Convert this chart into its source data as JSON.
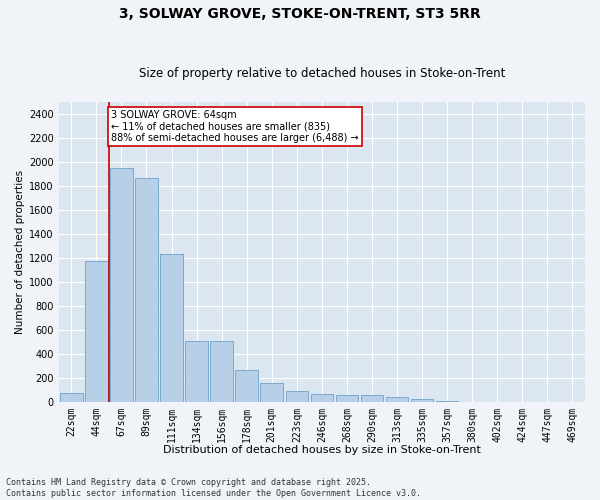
{
  "title1": "3, SOLWAY GROVE, STOKE-ON-TRENT, ST3 5RR",
  "title2": "Size of property relative to detached houses in Stoke-on-Trent",
  "xlabel": "Distribution of detached houses by size in Stoke-on-Trent",
  "ylabel": "Number of detached properties",
  "categories": [
    "22sqm",
    "44sqm",
    "67sqm",
    "89sqm",
    "111sqm",
    "134sqm",
    "156sqm",
    "178sqm",
    "201sqm",
    "223sqm",
    "246sqm",
    "268sqm",
    "290sqm",
    "313sqm",
    "335sqm",
    "357sqm",
    "380sqm",
    "402sqm",
    "424sqm",
    "447sqm",
    "469sqm"
  ],
  "values": [
    75,
    1175,
    1950,
    1860,
    1230,
    510,
    510,
    270,
    160,
    95,
    70,
    55,
    55,
    45,
    30,
    10,
    5,
    5,
    5,
    5,
    5
  ],
  "bar_color": "#b8cfe8",
  "bar_edge_color": "#7aaad0",
  "bg_color": "#dce6f0",
  "grid_color": "#ffffff",
  "annotation_text": "3 SOLWAY GROVE: 64sqm\n← 11% of detached houses are smaller (835)\n88% of semi-detached houses are larger (6,488) →",
  "annotation_box_color": "#ffffff",
  "annotation_box_edge": "#cc0000",
  "vline_color": "#cc0000",
  "vline_pos": 1.5,
  "ylim": [
    0,
    2500
  ],
  "yticks": [
    0,
    200,
    400,
    600,
    800,
    1000,
    1200,
    1400,
    1600,
    1800,
    2000,
    2200,
    2400
  ],
  "footnote": "Contains HM Land Registry data © Crown copyright and database right 2025.\nContains public sector information licensed under the Open Government Licence v3.0.",
  "fig_bg": "#f0f4f8",
  "title1_fontsize": 10,
  "title2_fontsize": 8.5,
  "xlabel_fontsize": 8,
  "ylabel_fontsize": 7.5,
  "tick_fontsize": 7,
  "annot_fontsize": 7,
  "footnote_fontsize": 6
}
